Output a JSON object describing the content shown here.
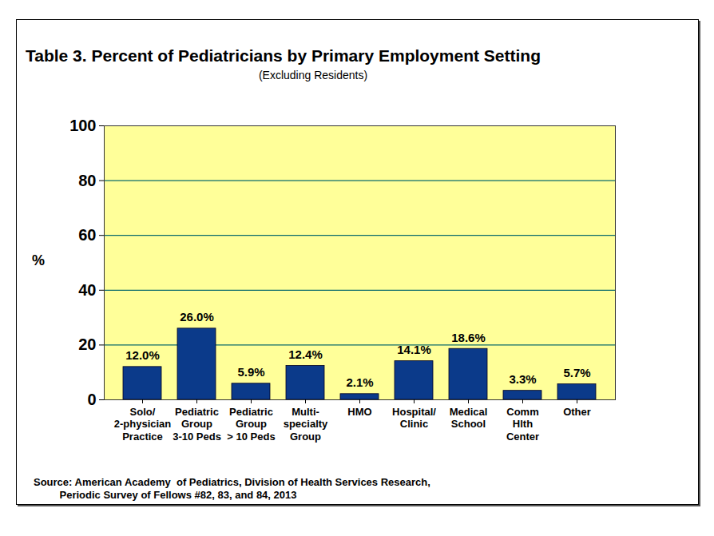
{
  "chart_data": {
    "type": "bar",
    "title": "Table 3. Percent of Pediatricians by Primary Employment Setting",
    "subtitle": "(Excluding Residents)",
    "y_label": "%",
    "source": "Source: American Academy  of Pediatrics, Division of Health Services Research,\n         Periodic Survey of Fellows #82, 83, and 84, 2013",
    "categories": [
      "Solo/\n2-physician\nPractice",
      "Pediatric\nGroup\n3-10 Peds",
      "Pediatric\nGroup\n> 10 Peds",
      "Multi-\nspecialty\nGroup",
      "HMO",
      "Hospital/\nClinic",
      "Medical\nSchool",
      "Comm\nHlth\nCenter",
      "Other"
    ],
    "values": [
      12.0,
      26.0,
      5.9,
      12.4,
      2.1,
      14.1,
      18.6,
      3.3,
      5.7
    ],
    "value_labels": [
      "12.0%",
      "26.0%",
      "5.9%",
      "12.4%",
      "2.1%",
      "14.1%",
      "18.6%",
      "3.3%",
      "5.7%"
    ],
    "data_labels": true,
    "color": "#0b3a8a",
    "ylim": [
      0,
      100
    ],
    "yticks": [
      0,
      20,
      40,
      60,
      80,
      100
    ],
    "grid": true
  }
}
